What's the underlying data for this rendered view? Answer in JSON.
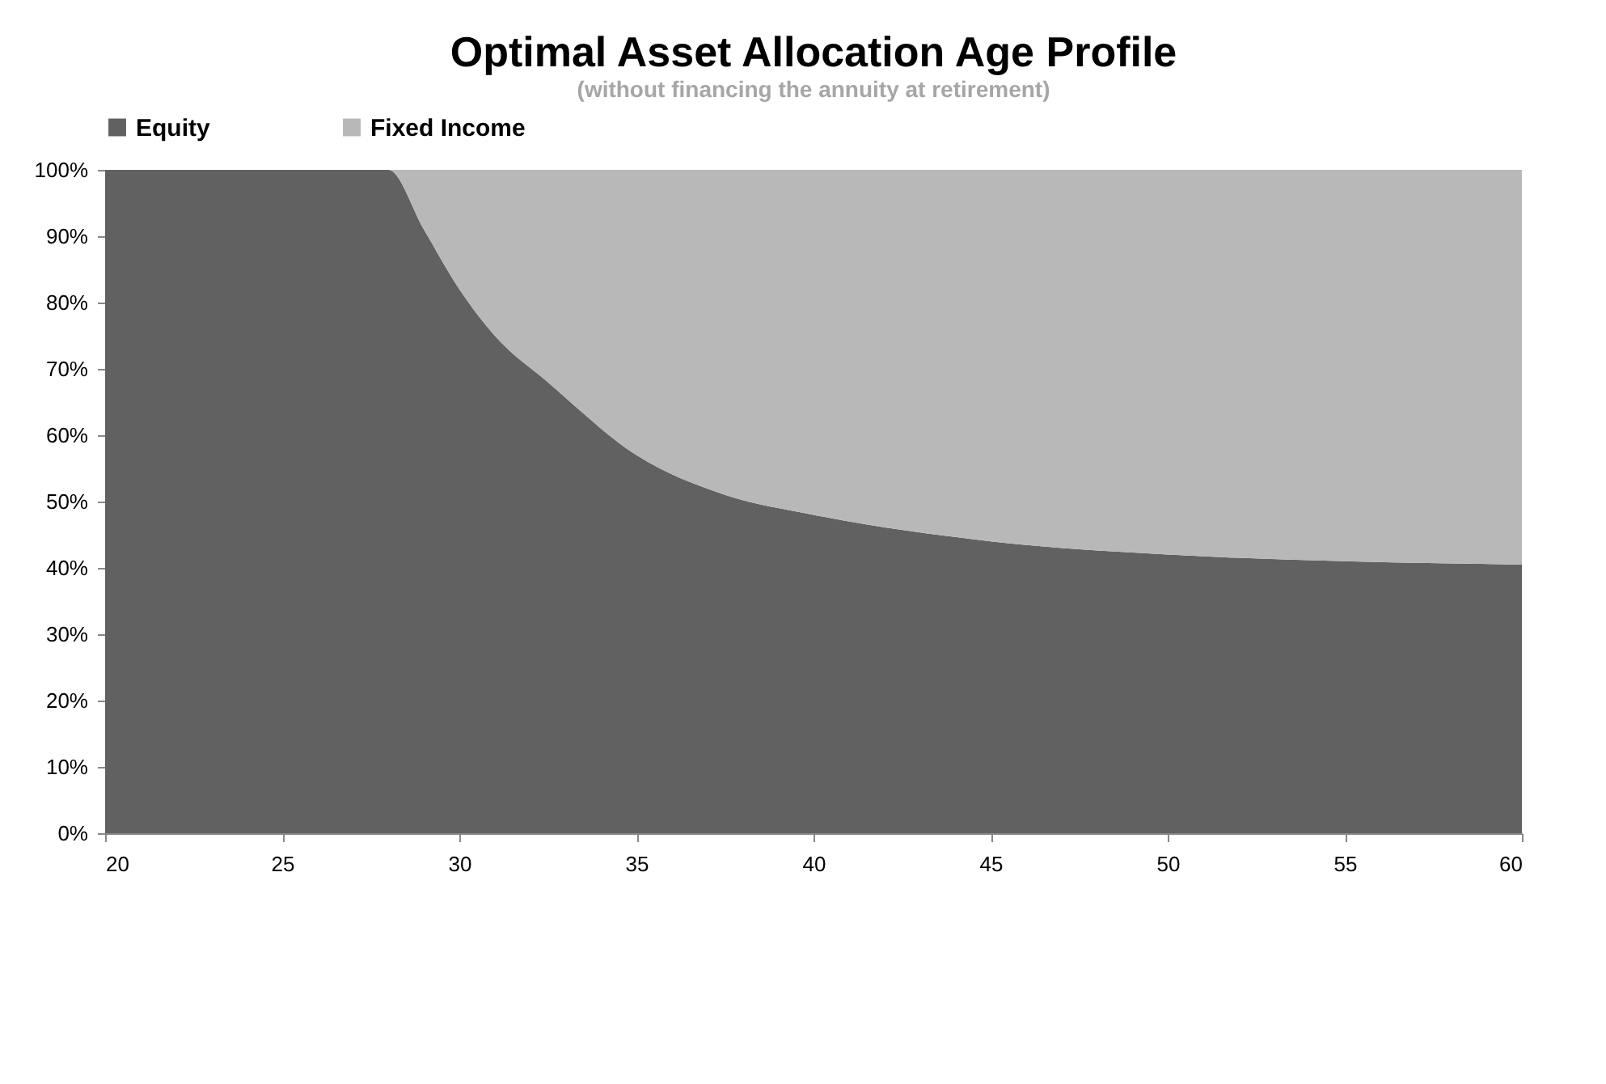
{
  "chart_data": {
    "type": "area",
    "title": "Optimal Asset Allocation Age Profile",
    "subtitle": "(without financing the annuity at retirement)",
    "x": [
      20,
      28,
      29,
      30,
      31,
      32.5,
      35,
      37.5,
      40,
      45,
      50,
      55,
      60
    ],
    "stacked": true,
    "series": [
      {
        "name": "Equity",
        "color": "#616161",
        "values": [
          100,
          100,
          91,
          82,
          75,
          68,
          57,
          51,
          48,
          44,
          42,
          41,
          40.5
        ]
      },
      {
        "name": "Fixed Income",
        "color": "#b8b8b8",
        "values": [
          0,
          0,
          9,
          18,
          25,
          32,
          43,
          49,
          52,
          56,
          58,
          59,
          59.5
        ]
      }
    ],
    "xlim": [
      20,
      60
    ],
    "xticks": [
      20,
      25,
      30,
      35,
      40,
      45,
      50,
      55,
      60
    ],
    "ylim": [
      0,
      100
    ],
    "yticks": [
      {
        "value": 0,
        "label": "0%"
      },
      {
        "value": 10,
        "label": "10%"
      },
      {
        "value": 20,
        "label": "20%"
      },
      {
        "value": 30,
        "label": "30%"
      },
      {
        "value": 40,
        "label": "40%"
      },
      {
        "value": 50,
        "label": "50%"
      },
      {
        "value": 60,
        "label": "60%"
      },
      {
        "value": 70,
        "label": "70%"
      },
      {
        "value": 80,
        "label": "80%"
      },
      {
        "value": 90,
        "label": "90%"
      },
      {
        "value": 100,
        "label": "100%"
      }
    ],
    "legend": "top",
    "grid": false
  }
}
